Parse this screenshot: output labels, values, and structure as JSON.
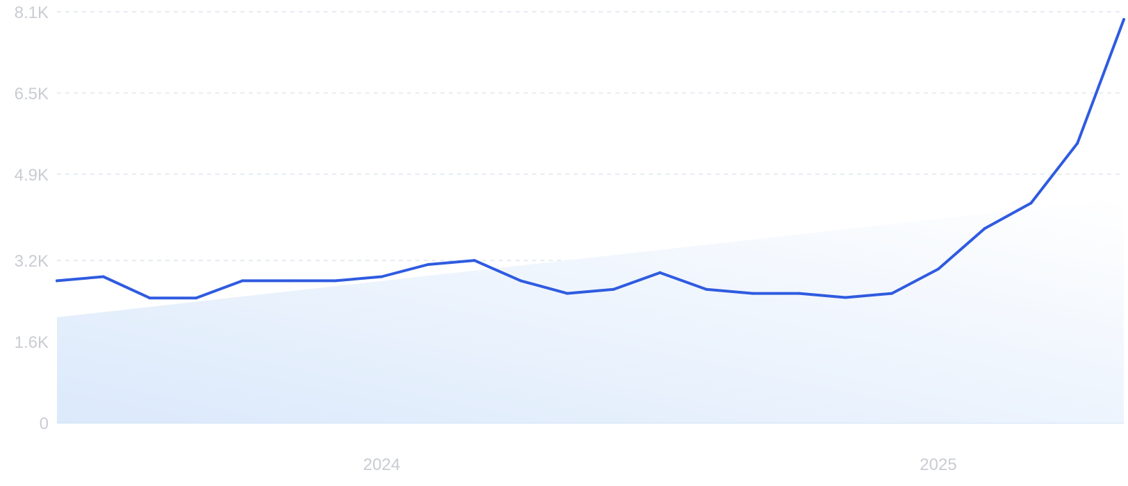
{
  "chart_data": {
    "type": "line",
    "title": "",
    "xlabel": "",
    "ylabel": "",
    "x": [
      "2023-06",
      "2023-07",
      "2023-08",
      "2023-09",
      "2023-10",
      "2023-11",
      "2023-12",
      "2024-01",
      "2024-02",
      "2024-03",
      "2024-04",
      "2024-05",
      "2024-06",
      "2024-07",
      "2024-08",
      "2024-09",
      "2024-10",
      "2024-11",
      "2024-12",
      "2025-01",
      "2025-02",
      "2025-03",
      "2025-04",
      "2025-05"
    ],
    "series": [
      {
        "color": "#2f5be0",
        "values": [
          2800,
          2880,
          2460,
          2460,
          2800,
          2800,
          2800,
          2880,
          3120,
          3200,
          2800,
          2550,
          2630,
          2960,
          2630,
          2550,
          2550,
          2470,
          2550,
          3030,
          3830,
          4330,
          5510,
          7950
        ]
      },
      {
        "kind": "trend-area",
        "color": "#dceafb",
        "start": 2080,
        "end": 4430
      }
    ],
    "x_ticks": [
      "2024",
      "2025"
    ],
    "y_ticks": [
      "0",
      "1.6K",
      "3.2K",
      "4.9K",
      "6.5K",
      "8.1K"
    ],
    "y_tick_values": [
      0,
      1600,
      3200,
      4900,
      6500,
      8100
    ],
    "ylim": [
      0,
      8100
    ],
    "grid": true,
    "legend": "none"
  }
}
